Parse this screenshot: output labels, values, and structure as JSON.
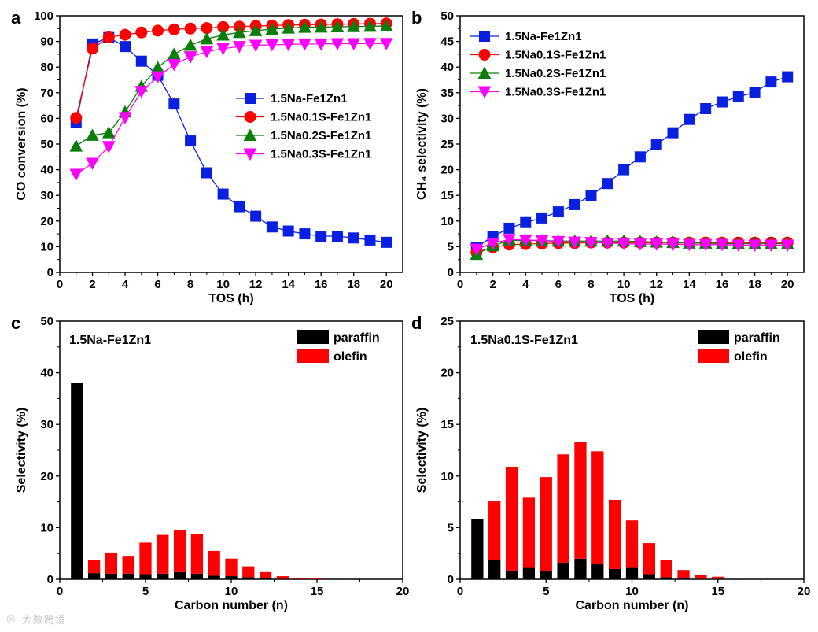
{
  "colors": {
    "blue": "#0a20e0",
    "red": "#ff0000",
    "green": "#0a7d0a",
    "magenta": "#ff00ff",
    "paraffin": "#000000",
    "olefin": "#ff0000"
  },
  "watermark": {
    "icon": "logo-icon",
    "text": "大数跨境"
  },
  "chart_data": [
    {
      "panel": "a",
      "type": "line",
      "xlabel": "TOS (h)",
      "ylabel": "CO conversion (%)",
      "xlim": [
        0,
        21
      ],
      "ylim": [
        0,
        100
      ],
      "xticks": [
        0,
        2,
        4,
        6,
        8,
        10,
        12,
        14,
        16,
        18,
        20
      ],
      "yticks": [
        0,
        10,
        20,
        30,
        40,
        50,
        60,
        70,
        80,
        90,
        100
      ],
      "legend_position": "center-right",
      "x": [
        1,
        2,
        3,
        4,
        5,
        6,
        7,
        8,
        9,
        10,
        11,
        12,
        13,
        14,
        15,
        16,
        17,
        18,
        19,
        20
      ],
      "series": [
        {
          "name": "1.5Na-Fe1Zn1",
          "marker": "square",
          "color": "#0a20e0",
          "values": [
            58.3,
            89,
            91.5,
            88,
            82.3,
            76.8,
            65.6,
            51.2,
            38.8,
            30.5,
            25.6,
            21.9,
            17.7,
            16.1,
            15,
            14.1,
            14.1,
            13.4,
            12.6,
            11.7
          ]
        },
        {
          "name": "1.5Na0.1S-Fe1Zn1",
          "marker": "circle",
          "color": "#ff0000",
          "values": [
            60.2,
            87.2,
            91.6,
            92.6,
            93.5,
            94.2,
            94.7,
            95,
            95.2,
            95.6,
            95.8,
            96,
            96.2,
            96.4,
            96.5,
            96.6,
            96.7,
            96.8,
            96.9,
            97
          ]
        },
        {
          "name": "1.5Na0.2S-Fe1Zn1",
          "marker": "triangle-up",
          "color": "#0a7d0a",
          "values": [
            49.2,
            53.4,
            54.4,
            62.5,
            72.5,
            79.8,
            85,
            88.5,
            91,
            92.5,
            93.5,
            94.2,
            94.8,
            95.2,
            95.5,
            95.6,
            95.7,
            95.8,
            95.9,
            96
          ]
        },
        {
          "name": "1.5Na0.3S-Fe1Zn1",
          "marker": "triangle-down",
          "color": "#ff00ff",
          "values": [
            38.2,
            42.5,
            49,
            60.3,
            70.5,
            76.2,
            81,
            84,
            86,
            87.2,
            88,
            88.5,
            88.7,
            88.8,
            89,
            89,
            89.1,
            89.1,
            89.2,
            89.2
          ]
        }
      ]
    },
    {
      "panel": "b",
      "type": "line",
      "xlabel": "TOS (h)",
      "ylabel": "CH₄ selectivity (%)",
      "xlim": [
        0,
        21
      ],
      "ylim": [
        0,
        50
      ],
      "xticks": [
        0,
        2,
        4,
        6,
        8,
        10,
        12,
        14,
        16,
        18,
        20
      ],
      "yticks": [
        0,
        5,
        10,
        15,
        20,
        25,
        30,
        35,
        40,
        45,
        50
      ],
      "legend_position": "top-left",
      "x": [
        1,
        2,
        3,
        4,
        5,
        6,
        7,
        8,
        9,
        10,
        11,
        12,
        13,
        14,
        15,
        16,
        17,
        18,
        19,
        20
      ],
      "series": [
        {
          "name": "1.5Na-Fe1Zn1",
          "marker": "square",
          "color": "#0a20e0",
          "values": [
            4.9,
            7,
            8.6,
            9.7,
            10.6,
            11.8,
            13.2,
            15,
            17.3,
            20,
            22.5,
            24.9,
            27.2,
            29.8,
            31.9,
            33.2,
            34.2,
            35.1,
            37.1,
            38.1
          ]
        },
        {
          "name": "1.5Na0.1S-Fe1Zn1",
          "marker": "circle",
          "color": "#ff0000",
          "values": [
            3.9,
            4.9,
            5.4,
            5.5,
            5.6,
            5.7,
            5.7,
            5.8,
            5.8,
            5.8,
            5.8,
            5.8,
            5.8,
            5.8,
            5.8,
            5.8,
            5.8,
            5.8,
            5.8,
            5.8
          ]
        },
        {
          "name": "1.5Na0.2S-Fe1Zn1",
          "marker": "triangle-up",
          "color": "#0a7d0a",
          "values": [
            3.5,
            5.2,
            6.2,
            6.2,
            6.2,
            6.1,
            6.1,
            6.1,
            6.1,
            6.1,
            6,
            5.9,
            5.8,
            5.7,
            5.7,
            5.6,
            5.6,
            5.6,
            5.6,
            5.6
          ]
        },
        {
          "name": "1.5Na0.3S-Fe1Zn1",
          "marker": "triangle-down",
          "color": "#ff00ff",
          "values": [
            4.5,
            5.7,
            6.4,
            6.3,
            6.2,
            6,
            5.9,
            5.8,
            5.7,
            5.6,
            5.5,
            5.5,
            5.5,
            5.4,
            5.4,
            5.4,
            5.3,
            5.3,
            5.3,
            5.3
          ]
        }
      ]
    },
    {
      "panel": "c",
      "type": "bar",
      "stacked": true,
      "annotation": "1.5Na-Fe1Zn1",
      "xlabel": "Carbon number (n)",
      "ylabel": "Selectivity (%)",
      "xlim": [
        0,
        20
      ],
      "ylim": [
        0,
        50
      ],
      "xticks": [
        0,
        5,
        10,
        15,
        20
      ],
      "yticks": [
        0,
        10,
        20,
        30,
        40,
        50
      ],
      "legend_position": "top-right",
      "categories": [
        1,
        2,
        3,
        4,
        5,
        6,
        7,
        8,
        9,
        10,
        11,
        12,
        13,
        14,
        15
      ],
      "series": [
        {
          "name": "paraffin",
          "color": "#000000",
          "values": [
            38.1,
            1.2,
            1.1,
            1.1,
            1,
            1.1,
            1.4,
            1.1,
            0.7,
            0.6,
            0.4,
            0.2,
            0.1,
            0.05,
            0.03
          ]
        },
        {
          "name": "olefin",
          "color": "#ff0000",
          "values": [
            0,
            2.5,
            4.1,
            3.3,
            6.1,
            7.5,
            8.1,
            7.7,
            4.8,
            3.4,
            2.1,
            1.2,
            0.5,
            0.25,
            0.12
          ]
        }
      ]
    },
    {
      "panel": "d",
      "type": "bar",
      "stacked": true,
      "annotation": "1.5Na0.1S-Fe1Zn1",
      "xlabel": "Carbon number (n)",
      "ylabel": "Selectivity (%)",
      "xlim": [
        0,
        20
      ],
      "ylim": [
        0,
        25
      ],
      "xticks": [
        0,
        5,
        10,
        15,
        20
      ],
      "yticks": [
        0,
        5,
        10,
        15,
        20,
        25
      ],
      "legend_position": "top-right",
      "categories": [
        1,
        2,
        3,
        4,
        5,
        6,
        7,
        8,
        9,
        10,
        11,
        12,
        13,
        14,
        15
      ],
      "series": [
        {
          "name": "paraffin",
          "color": "#000000",
          "values": [
            5.8,
            1.9,
            0.8,
            1.1,
            0.8,
            1.6,
            2,
            1.5,
            1,
            1.1,
            0.5,
            0.2,
            0.1,
            0.05,
            0.05
          ]
        },
        {
          "name": "olefin",
          "color": "#ff0000",
          "values": [
            0,
            5.7,
            10.1,
            6.8,
            9.1,
            10.5,
            11.3,
            10.9,
            6.7,
            4.6,
            3,
            1.7,
            0.8,
            0.35,
            0.2
          ]
        }
      ]
    }
  ]
}
